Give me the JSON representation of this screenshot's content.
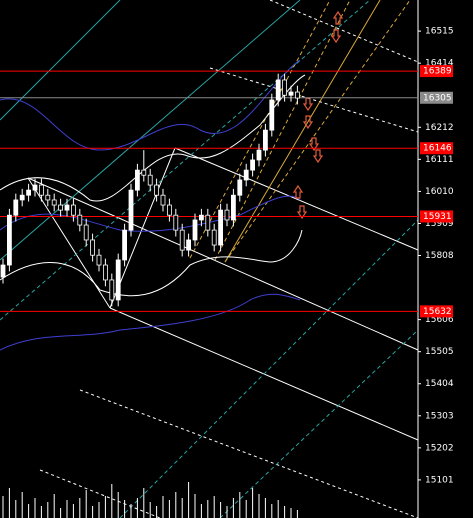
{
  "chart_data": {
    "type": "candlestick",
    "ylim": [
      14981,
      16613
    ],
    "yticks": [
      16515,
      16414,
      16212,
      16111,
      16010,
      15909,
      15808,
      15606,
      15505,
      15404,
      15303,
      15202,
      15101
    ],
    "open": [
      15740,
      15778,
      15935,
      15983,
      15998,
      16014,
      16030,
      15998,
      15983,
      15967,
      15951,
      15967,
      15935,
      15904,
      15857,
      15809,
      15778,
      15731,
      15668,
      15794,
      15888,
      16014,
      16077,
      16061,
      16030,
      15998,
      15967,
      15935,
      15888,
      15825,
      15857,
      15920,
      15935,
      15888,
      15841,
      15951,
      15920,
      15998,
      16046,
      16077,
      16109,
      16140,
      16203,
      16298,
      16361,
      16313,
      16323
    ],
    "high": [
      15798,
      15955,
      16003,
      16018,
      16034,
      16050,
      16050,
      16018,
      16003,
      15987,
      15987,
      15987,
      15955,
      15924,
      15877,
      15829,
      15798,
      15751,
      15814,
      15908,
      16034,
      16097,
      16140,
      16081,
      16050,
      16018,
      15987,
      15955,
      15908,
      15877,
      15940,
      15955,
      15955,
      15908,
      15971,
      15971,
      16018,
      16066,
      16097,
      16129,
      16160,
      16223,
      16318,
      16381,
      16381,
      16343,
      16343
    ],
    "low": [
      15720,
      15758,
      15915,
      15963,
      15978,
      15994,
      15978,
      15963,
      15947,
      15931,
      15931,
      15915,
      15884,
      15837,
      15789,
      15758,
      15711,
      15648,
      15648,
      15774,
      15868,
      15994,
      16041,
      16010,
      15978,
      15947,
      15915,
      15868,
      15805,
      15805,
      15837,
      15900,
      15868,
      15821,
      15821,
      15900,
      15900,
      15978,
      16026,
      16057,
      16089,
      16120,
      16183,
      16278,
      16293,
      16293,
      16284
    ],
    "close": [
      15778,
      15935,
      15983,
      15998,
      16014,
      16030,
      15998,
      15983,
      15967,
      15951,
      15967,
      15935,
      15904,
      15857,
      15809,
      15778,
      15731,
      15668,
      15794,
      15888,
      16014,
      16077,
      16061,
      16030,
      15998,
      15967,
      15935,
      15888,
      15825,
      15857,
      15920,
      15935,
      15888,
      15841,
      15951,
      15920,
      15998,
      16046,
      16077,
      16109,
      16140,
      16203,
      16298,
      16361,
      16313,
      16323,
      16304
    ],
    "volume": [
      22,
      30,
      18,
      26,
      14,
      20,
      12,
      16,
      24,
      10,
      18,
      14,
      20,
      28,
      12,
      16,
      22,
      34,
      26,
      18,
      14,
      20,
      30,
      16,
      12,
      22,
      18,
      26,
      20,
      36,
      24,
      14,
      18,
      22,
      16,
      12,
      20,
      26,
      18,
      30,
      24,
      20,
      14,
      18,
      12,
      10,
      8
    ],
    "candle_color": "#ffffff",
    "levels": [
      16389,
      16146,
      15931,
      15632
    ],
    "level_color": "#ff0000",
    "last_price": 16305,
    "last_price_color": "#8a8a8a"
  }
}
